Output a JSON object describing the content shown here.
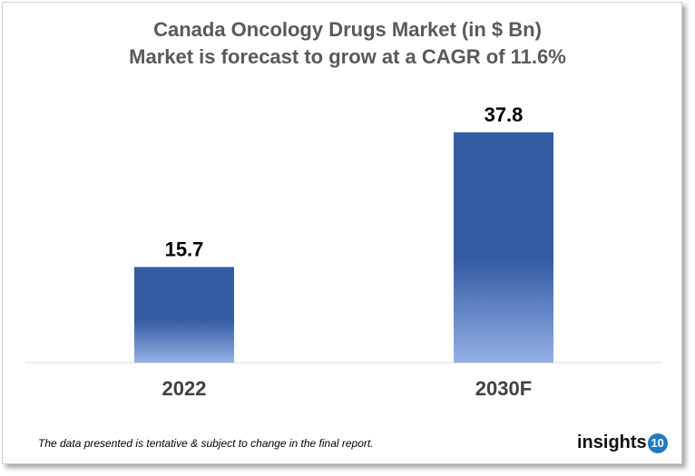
{
  "chart_data": {
    "type": "bar",
    "title": "Canada Oncology Drugs Market (in $ Bn)",
    "subtitle": "Market is forecast to grow at a CAGR of 11.6%",
    "categories": [
      "2022",
      "2030F"
    ],
    "values": [
      15.7,
      37.8
    ],
    "data_labels": [
      "15.7",
      "37.8"
    ],
    "xlabel": "",
    "ylabel": "",
    "ylim": [
      0,
      37.8
    ],
    "grid": false,
    "bar_color_top": "#335ca3",
    "bar_color_bottom": "#94b0e6"
  },
  "footnote": "The data presented is tentative & subject to change in the final report.",
  "logo": {
    "text": "insights",
    "badge": "10",
    "badge_color": "#1f7bc1"
  }
}
